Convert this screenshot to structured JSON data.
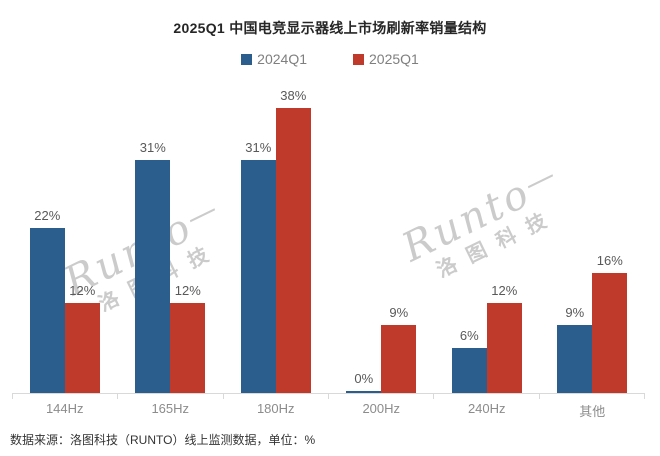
{
  "page": {
    "title": "2025Q1 中国电竞显示器线上市场刷新率销量结构"
  },
  "chart_data": {
    "type": "bar",
    "title": "2025Q1 中国电竞显示器线上市场刷新率销量结构",
    "categories": [
      "144Hz",
      "165Hz",
      "180Hz",
      "200Hz",
      "240Hz",
      "其他"
    ],
    "series": [
      {
        "name": "2024Q1",
        "color": "#2b5e8c",
        "values": [
          22,
          31,
          31,
          0,
          6,
          9
        ]
      },
      {
        "name": "2025Q1",
        "color": "#c03a2b",
        "values": [
          12,
          12,
          38,
          9,
          12,
          16
        ]
      }
    ],
    "unit": "%",
    "ylim": [
      0,
      40
    ],
    "legend_position": "top",
    "grid": false,
    "value_labels": true,
    "axis_color": "#d9d9d9",
    "value_label_color": "#595959",
    "category_label_color": "#8c8c8c",
    "legend_text_color": "#7f7f7f"
  },
  "watermark": {
    "brand_script": "Runto",
    "flourish": "—",
    "brand_cn": "洛图科技",
    "color": "#c3c3c3"
  },
  "footer": {
    "source": "数据来源：洛图科技（RUNTO）线上监测数据，单位：%"
  }
}
